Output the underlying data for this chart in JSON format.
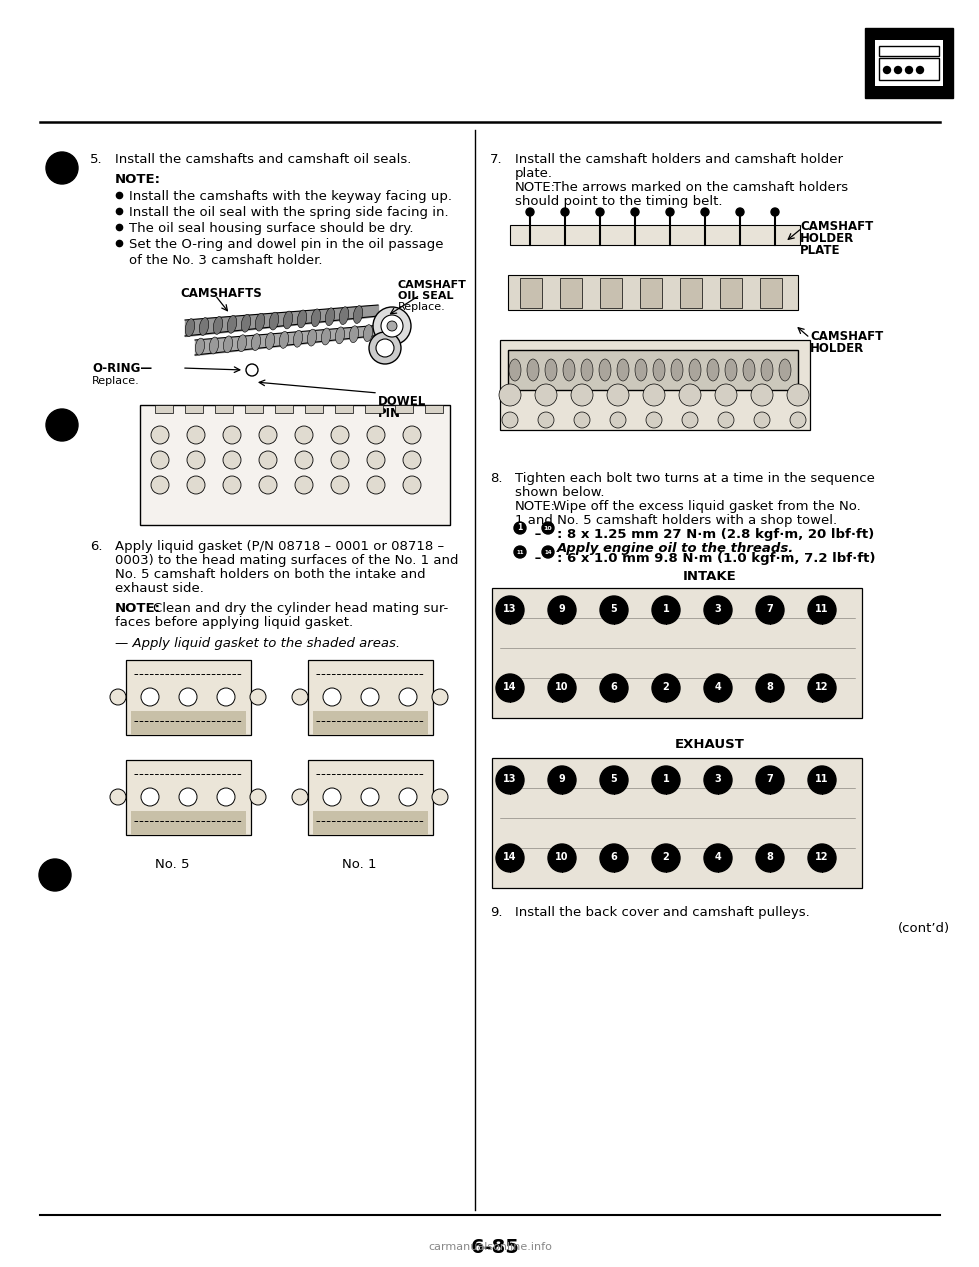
{
  "page_bg": "#ffffff",
  "page_number": "6-85",
  "left_col": {
    "sec5_num": "5.",
    "sec5_text": "Install the camshafts and camshaft oil seals.",
    "note_head": "NOTE:",
    "bullets": [
      "Install the camshafts with the keyway facing up.",
      "Install the oil seal with the spring side facing in.",
      "The oil seal housing surface should be dry.",
      "Set the O-ring and dowel pin in the oil passage",
      "of the No. 3 camshaft holder."
    ],
    "label_camshafts": "CAMSHAFTS",
    "label_oilseal": "CAMSHAFT\nOIL SEAL\nReplace.",
    "label_oring": "O-RING—",
    "label_oring2": "Replace.",
    "label_dowel": "DOWEL\nPIN",
    "sec6_num": "6.",
    "sec6_lines": [
      "Apply liquid gasket (P/N 08718 – 0001 or 08718 –",
      "0003) to the head mating surfaces of the No. 1 and",
      "No. 5 camshaft holders on both the intake and",
      "exhaust side."
    ],
    "note6_head": "NOTE:",
    "note6_text": "Clean and dry the cylinder head mating sur-",
    "note6_text2": "faces before applying liquid gasket.",
    "apply_text": "— Apply liquid gasket to the shaded areas.",
    "no5_label": "No. 5",
    "no1_label": "No. 1"
  },
  "right_col": {
    "sec7_num": "7.",
    "sec7_lines": [
      "Install the camshaft holders and camshaft holder",
      "plate."
    ],
    "note7_head": "NOTE:",
    "note7_text": "The arrows marked on the camshaft holders",
    "note7_text2": "should point to the timing belt.",
    "label_chp": "CAMSHAFT\nHOLDER\nPLATE",
    "label_ch": "CAMSHAFT\nHOLDER",
    "sec8_num": "8.",
    "sec8_lines": [
      "Tighten each bolt two turns at a time in the sequence",
      "shown below."
    ],
    "note8_head": "NOTE:",
    "note8_text": "Wipe off the excess liquid gasket from the No.",
    "note8_text2": "1 and No. 5 camshaft holders with a shop towel.",
    "bolt1": "● – ◍: 8 x 1.25 mm 27 N·m (2.8 kgf·m, 20 lbf·ft)",
    "bolt1b": "Apply engine oil to the threads.",
    "bolt2": "● – ◍: 6 x 1.0 mm 9.8 N·m (1.0 kgf·m, 7.2 lbf·ft)",
    "intake_label": "INTAKE",
    "intake_row1": [
      13,
      9,
      5,
      1,
      3,
      7,
      11
    ],
    "intake_row2": [
      14,
      10,
      6,
      2,
      4,
      8,
      12
    ],
    "exhaust_label": "EXHAUST",
    "exhaust_row1": [
      13,
      9,
      5,
      1,
      3,
      7,
      11
    ],
    "exhaust_row2": [
      14,
      10,
      6,
      2,
      4,
      8,
      12
    ],
    "sec9_num": "9.",
    "sec9_text": "Install the back cover and camshaft pulleys.",
    "contd": "(cont’d)"
  },
  "footer": {
    "watermark": "carmanualsonline.info",
    "page_num": "6-85"
  }
}
